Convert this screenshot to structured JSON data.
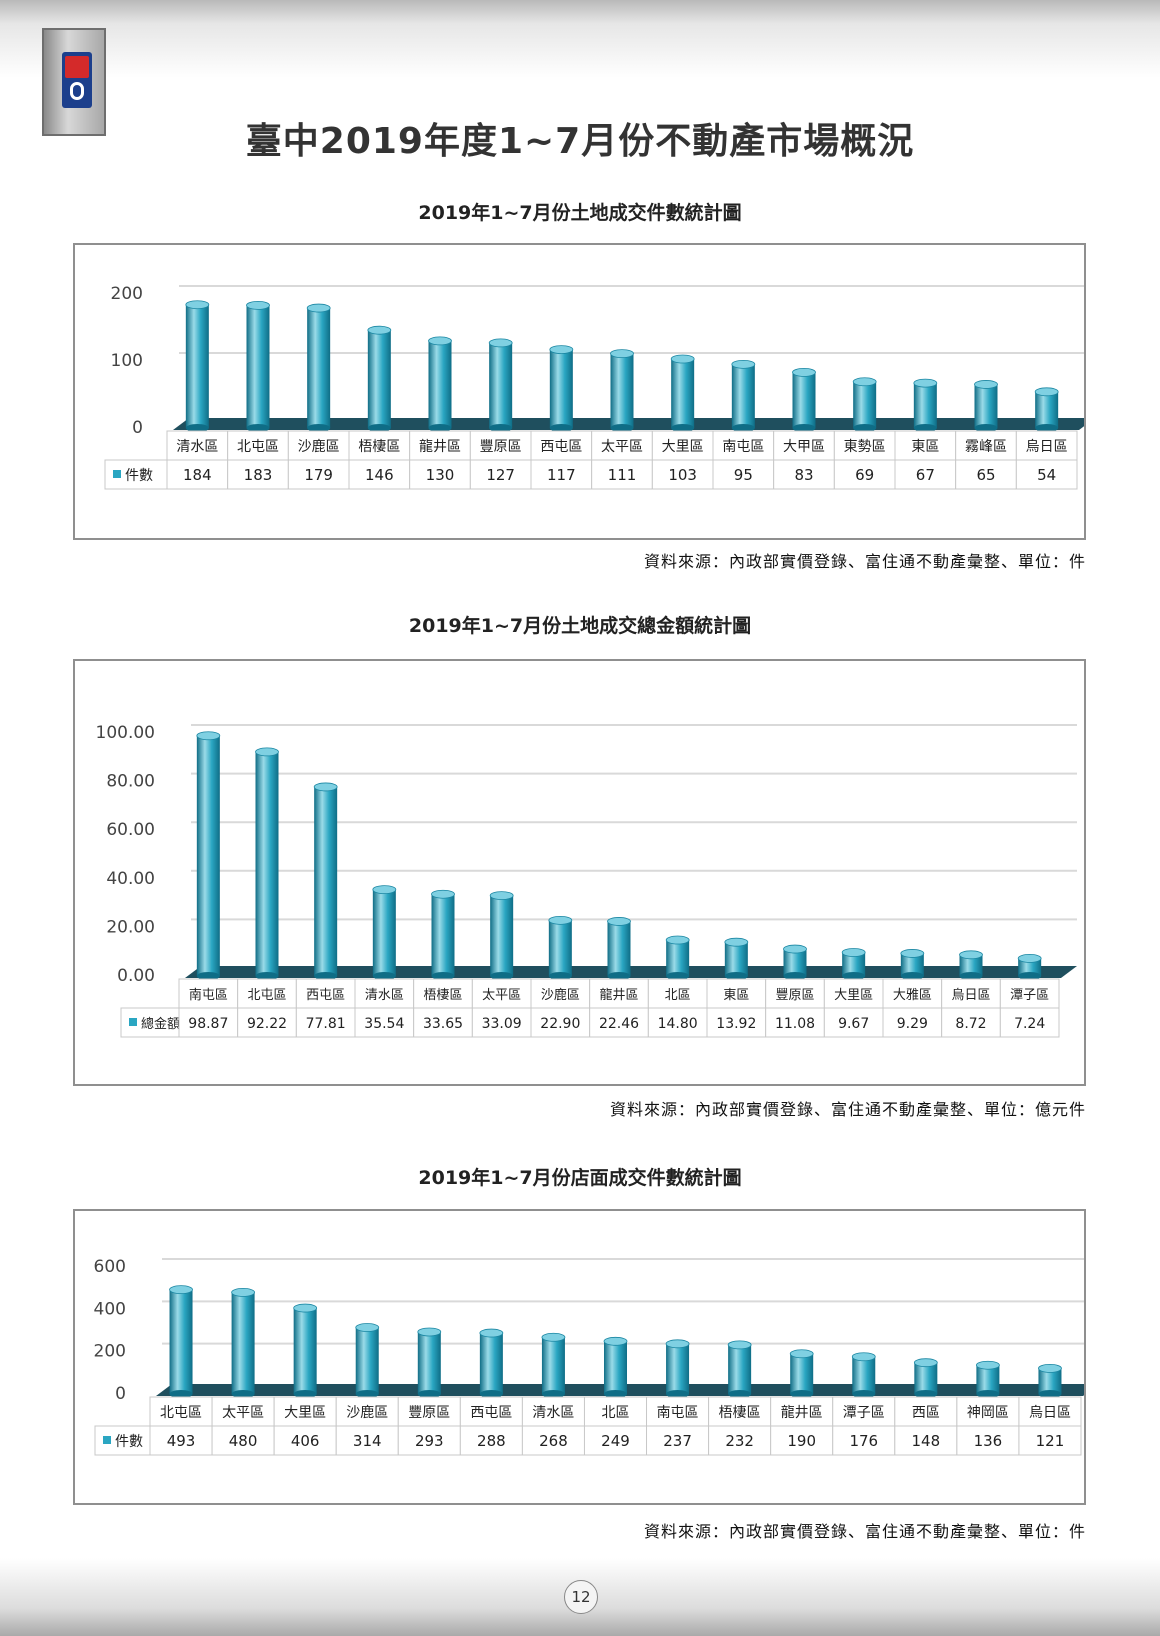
{
  "page": {
    "title": "臺中2019年度1~7月份不動產市場概況",
    "page_number": "12"
  },
  "colors": {
    "bar_light": "#9adbe8",
    "bar_mid": "#2aa6c2",
    "bar_dark": "#0f6d86",
    "floor": "#1f4f5e",
    "gridline": "#d9d9d9"
  },
  "chart_data": [
    {
      "type": "bar",
      "title": "2019年1~7月份土地成交件數統計圖",
      "series_name": "件數",
      "categories": [
        "清水區",
        "北屯區",
        "沙鹿區",
        "梧棲區",
        "龍井區",
        "豐原區",
        "西屯區",
        "太平區",
        "大里區",
        "南屯區",
        "大甲區",
        "東勢區",
        "東區",
        "霧峰區",
        "烏日區"
      ],
      "values": [
        184,
        183,
        179,
        146,
        130,
        127,
        117,
        111,
        103,
        95,
        83,
        69,
        67,
        65,
        54
      ],
      "value_labels": [
        "184",
        "183",
        "179",
        "146",
        "130",
        "127",
        "117",
        "111",
        "103",
        "95",
        "83",
        "69",
        "67",
        "65",
        "54"
      ],
      "yticks": [
        "0",
        "100",
        "200"
      ],
      "ylim": [
        0,
        200
      ],
      "grid": true,
      "source": "資料來源：內政部實價登錄、富住通不動產彙整、單位：件"
    },
    {
      "type": "bar",
      "title": "2019年1~7月份土地成交總金額統計圖",
      "series_name": "總金額",
      "categories": [
        "南屯區",
        "北屯區",
        "西屯區",
        "清水區",
        "梧棲區",
        "太平區",
        "沙鹿區",
        "龍井區",
        "北區",
        "東區",
        "豐原區",
        "大里區",
        "大雅區",
        "烏日區",
        "潭子區"
      ],
      "values": [
        98.87,
        92.22,
        77.81,
        35.54,
        33.65,
        33.09,
        22.9,
        22.46,
        14.8,
        13.92,
        11.08,
        9.67,
        9.29,
        8.72,
        7.24
      ],
      "value_labels": [
        "98.87",
        "92.22",
        "77.81",
        "35.54",
        "33.65",
        "33.09",
        "22.90",
        "22.46",
        "14.80",
        "13.92",
        "11.08",
        "9.67",
        "9.29",
        "8.72",
        "7.24"
      ],
      "yticks": [
        "0.00",
        "20.00",
        "40.00",
        "60.00",
        "80.00",
        "100.00"
      ],
      "ylim": [
        0,
        100
      ],
      "grid": true,
      "source": "資料來源：內政部實價登錄、富住通不動產彙整、單位：億元件"
    },
    {
      "type": "bar",
      "title": "2019年1~7月份店面成交件數統計圖",
      "series_name": "件數",
      "categories": [
        "北屯區",
        "太平區",
        "大里區",
        "沙鹿區",
        "豐原區",
        "西屯區",
        "清水區",
        "北區",
        "南屯區",
        "梧棲區",
        "龍井區",
        "潭子區",
        "西區",
        "神岡區",
        "烏日區"
      ],
      "values": [
        493,
        480,
        406,
        314,
        293,
        288,
        268,
        249,
        237,
        232,
        190,
        176,
        148,
        136,
        121
      ],
      "value_labels": [
        "493",
        "480",
        "406",
        "314",
        "293",
        "288",
        "268",
        "249",
        "237",
        "232",
        "190",
        "176",
        "148",
        "136",
        "121"
      ],
      "yticks": [
        "0",
        "200",
        "400",
        "600"
      ],
      "ylim": [
        0,
        600
      ],
      "grid": true,
      "source": "資料來源：內政部實價登錄、富住通不動產彙整、單位：件"
    }
  ]
}
